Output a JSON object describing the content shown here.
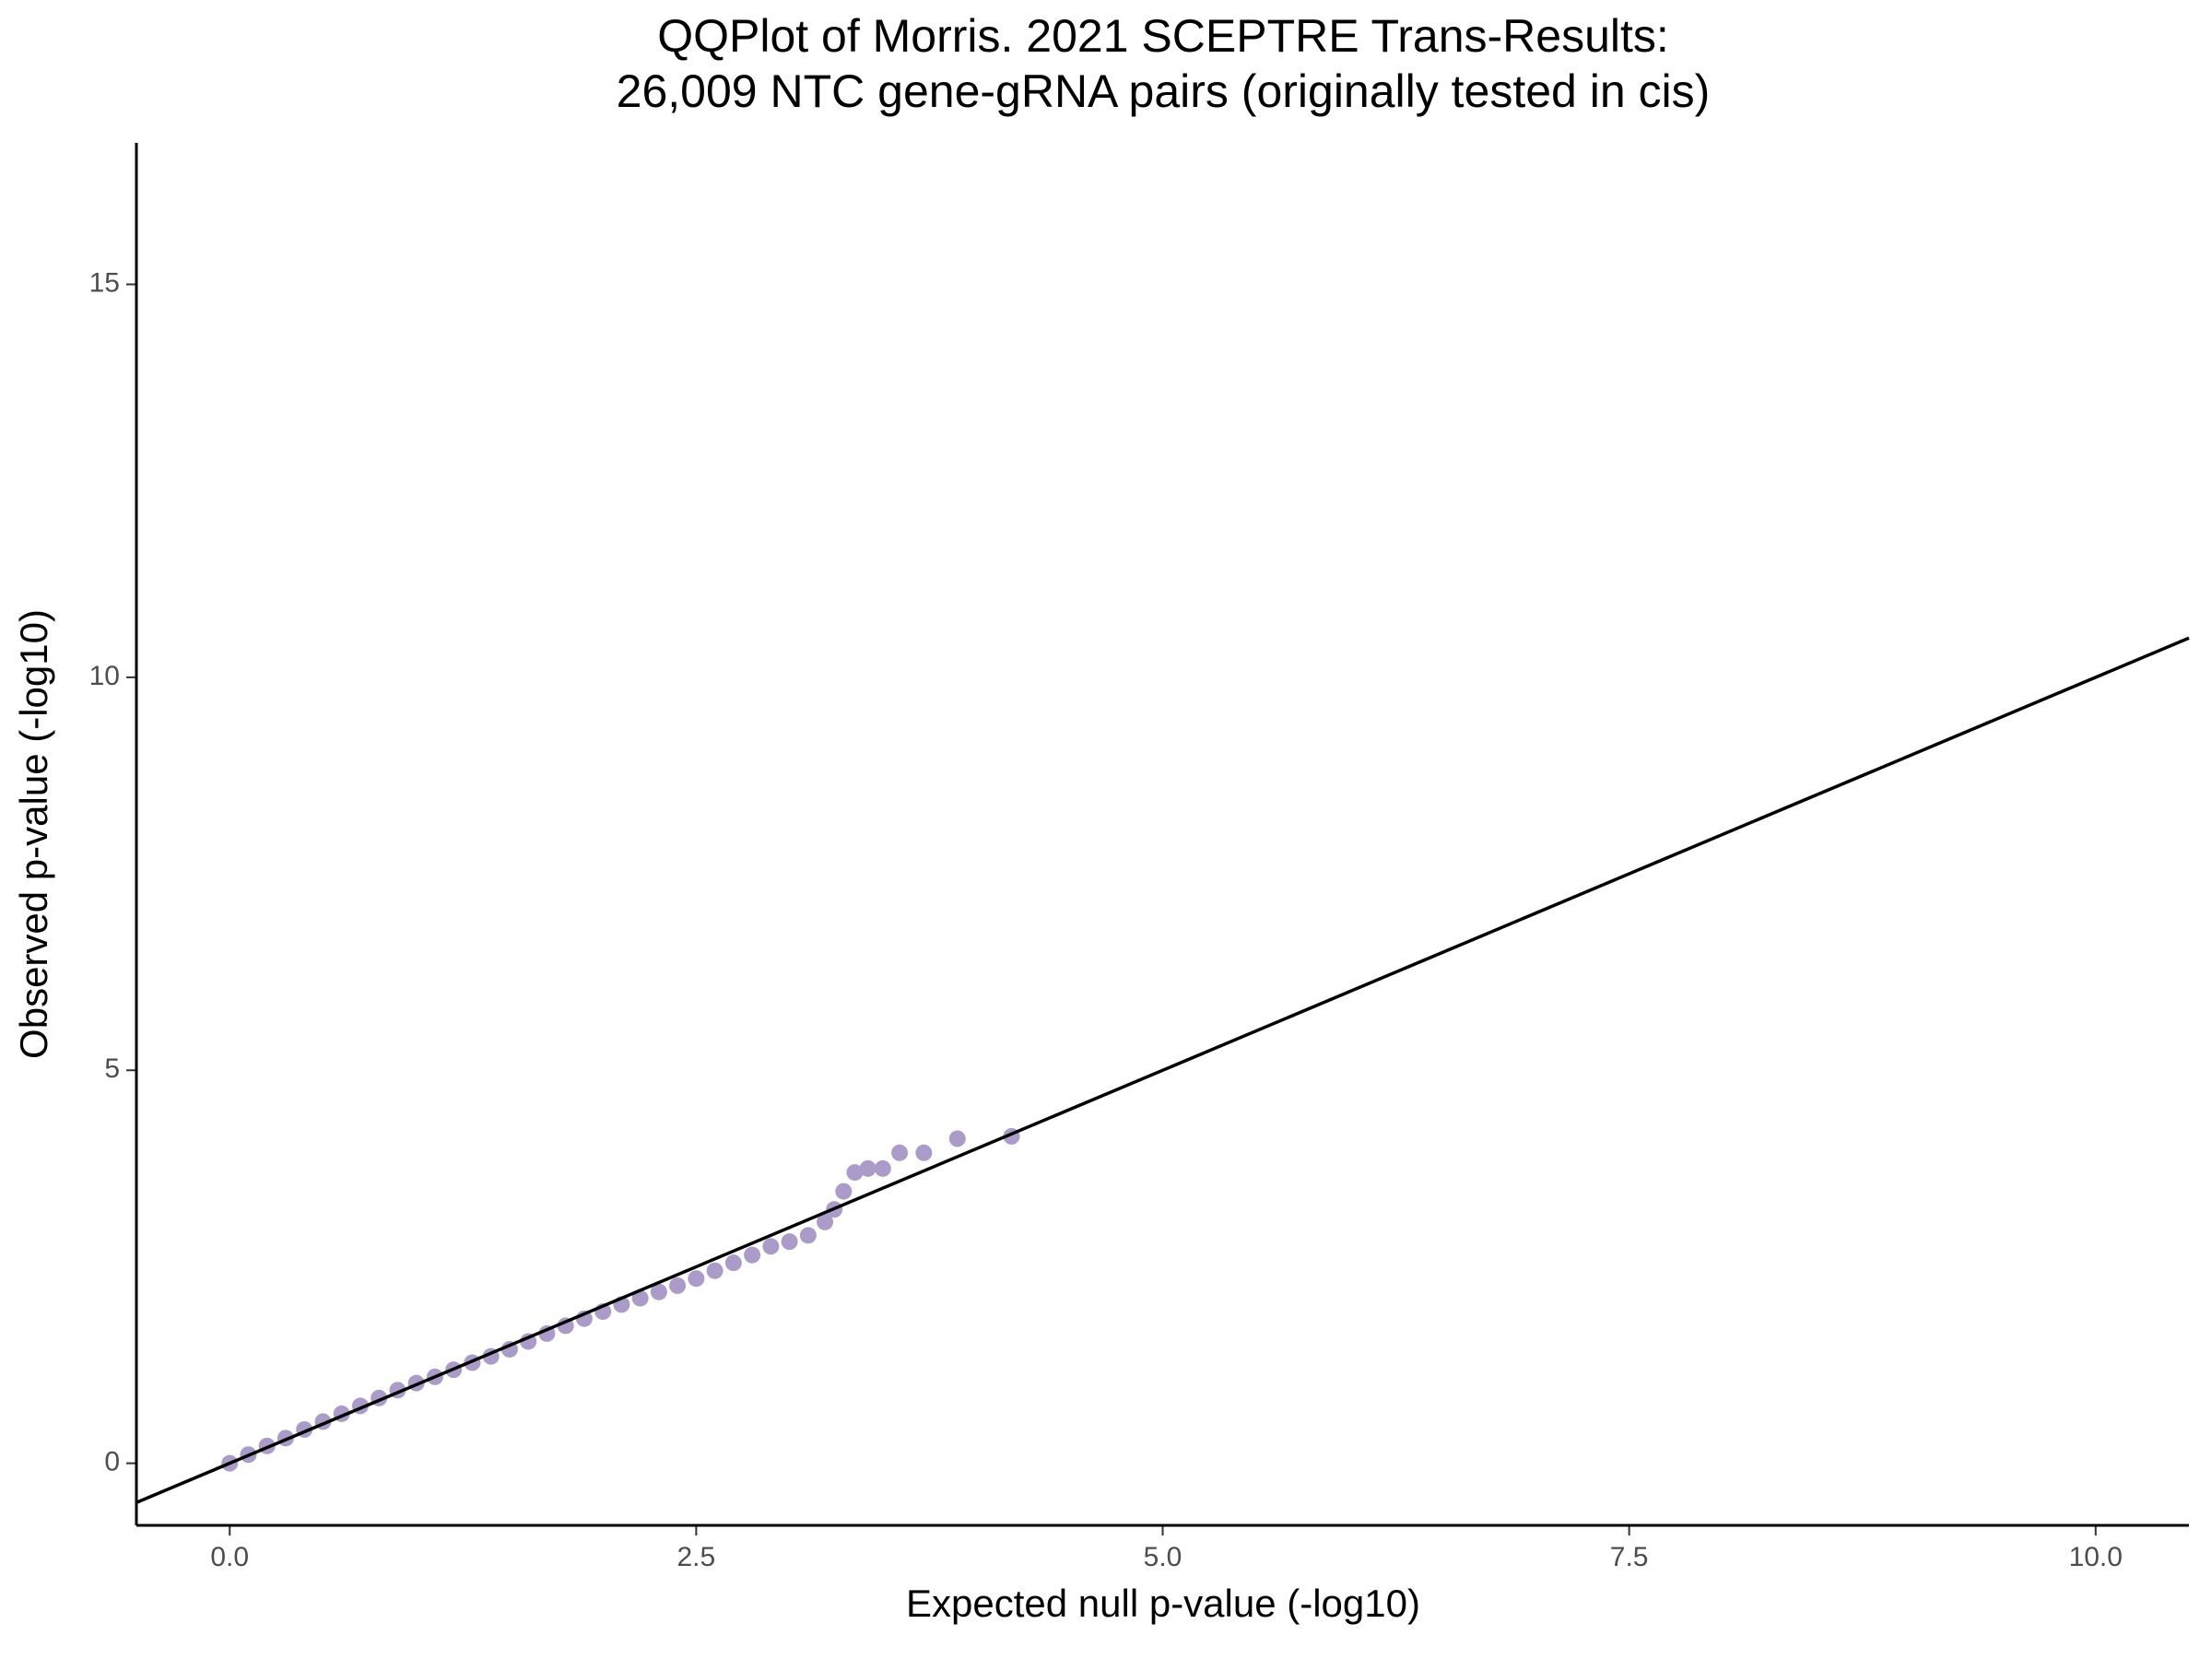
{
  "chart_data": {
    "type": "scatter",
    "title": [
      "QQPlot of Morris. 2021 SCEPTRE Trans-Results:",
      "26,009 NTC gene-gRNA pairs (originally tested in cis)"
    ],
    "x_label": "Expected null p-value (-log10)",
    "y_label": "Observed p-value (-log10)",
    "x": [
      0,
      0.1,
      0.2,
      0.3,
      0.4,
      0.5,
      0.6,
      0.7,
      0.8,
      0.9,
      1.0,
      1.1,
      1.2,
      1.3,
      1.4,
      1.5,
      1.6,
      1.7,
      1.8,
      1.9,
      2.0,
      2.1,
      2.2,
      2.3,
      2.4,
      2.5,
      2.6,
      2.7,
      2.8,
      2.9,
      3.0,
      3.1,
      3.19,
      3.24,
      3.29,
      3.35,
      3.42,
      3.5,
      3.59,
      3.72,
      3.9,
      4.19
    ],
    "values": [
      0,
      0.11,
      0.22,
      0.32,
      0.43,
      0.53,
      0.63,
      0.73,
      0.83,
      0.93,
      1.02,
      1.1,
      1.19,
      1.28,
      1.36,
      1.45,
      1.55,
      1.65,
      1.75,
      1.84,
      1.93,
      2.02,
      2.1,
      2.18,
      2.26,
      2.35,
      2.45,
      2.55,
      2.65,
      2.76,
      2.82,
      2.9,
      3.07,
      3.23,
      3.46,
      3.7,
      3.75,
      3.75,
      3.95,
      3.95,
      4.13,
      4.16
    ],
    "color": "#ab9bc9",
    "reference_line": {
      "slope": 1,
      "intercept": 0,
      "color": "#000000"
    },
    "xlim": [
      -0.5,
      10.5
    ],
    "ylim": [
      -0.79,
      16.8
    ],
    "xticks": [
      {
        "value": 0,
        "label": "0.0"
      },
      2.5,
      {
        "value": 5,
        "label": "5.0"
      },
      7.5,
      {
        "value": 10,
        "label": "10.0"
      }
    ],
    "yticks": [
      0,
      5,
      10,
      15
    ],
    "grid": false
  }
}
